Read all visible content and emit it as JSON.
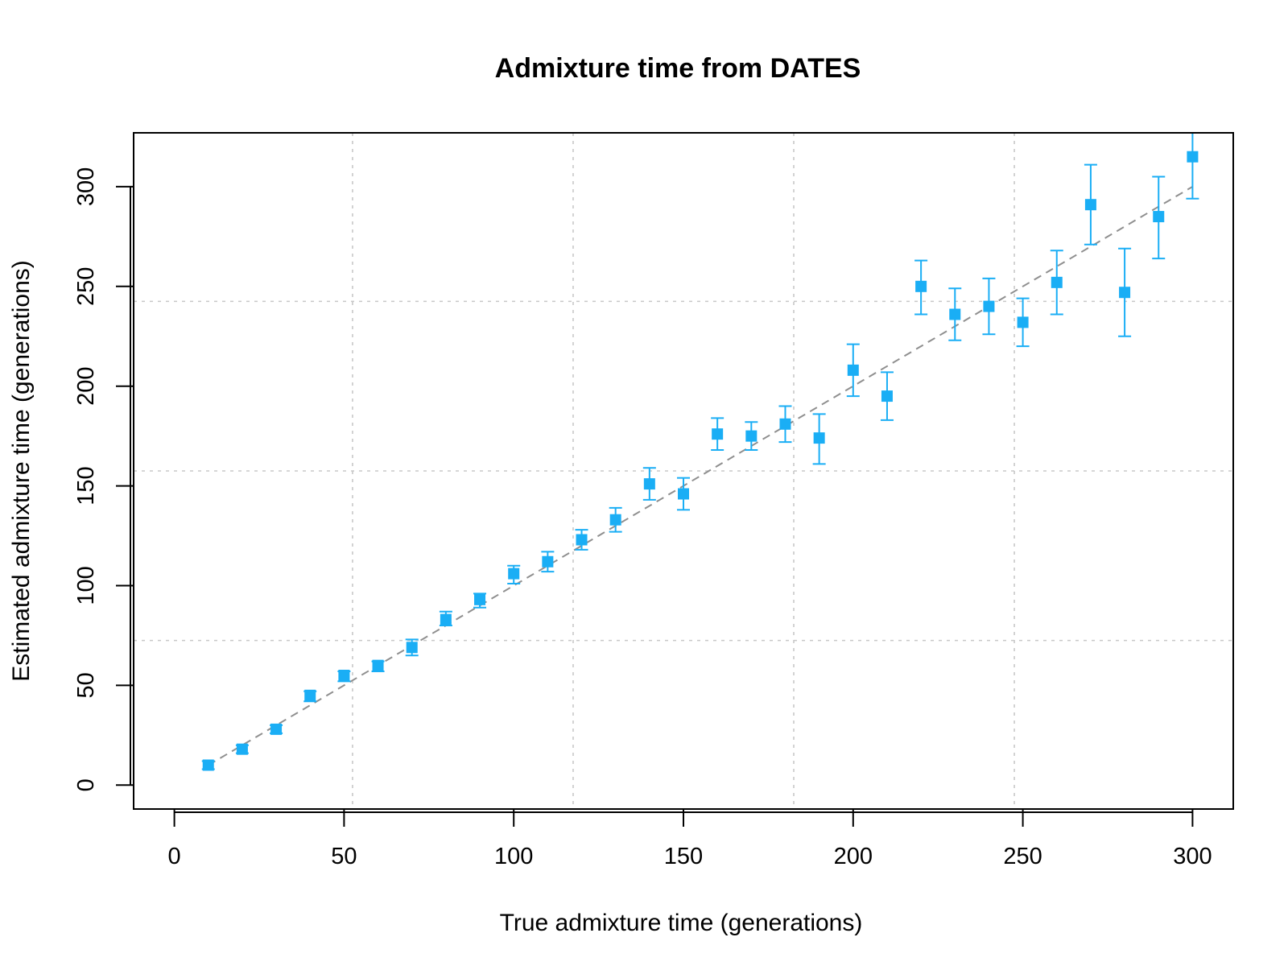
{
  "chart_data": {
    "type": "scatter",
    "title": "Admixture time from DATES",
    "xlabel": "True admixture time (generations)",
    "ylabel": "Estimated admixture time (generations)",
    "xlim": [
      -12,
      312
    ],
    "ylim": [
      -12,
      327
    ],
    "x_ticks": [
      0,
      50,
      100,
      150,
      200,
      250,
      300
    ],
    "y_ticks": [
      0,
      50,
      100,
      150,
      200,
      250,
      300
    ],
    "x_grid": [
      52.5,
      117.5,
      182.5,
      247.5
    ],
    "y_grid": [
      72.5,
      157.5,
      242.5
    ],
    "reference_line": {
      "from": [
        10,
        10
      ],
      "to": [
        300,
        300
      ]
    },
    "marker_color": "#1aaef5",
    "line_color": "#8f8f8f",
    "grid_color": "#c8c8c8",
    "points": [
      {
        "x": 10,
        "y": 10,
        "lo": 8,
        "hi": 12
      },
      {
        "x": 20,
        "y": 18,
        "lo": 16,
        "hi": 20
      },
      {
        "x": 30,
        "y": 28,
        "lo": 26,
        "hi": 30
      },
      {
        "x": 40,
        "y": 45,
        "lo": 42,
        "hi": 47
      },
      {
        "x": 50,
        "y": 55,
        "lo": 52,
        "hi": 57
      },
      {
        "x": 60,
        "y": 60,
        "lo": 57,
        "hi": 62
      },
      {
        "x": 70,
        "y": 69,
        "lo": 65,
        "hi": 73
      },
      {
        "x": 80,
        "y": 83,
        "lo": 80,
        "hi": 87
      },
      {
        "x": 90,
        "y": 93,
        "lo": 89,
        "hi": 96
      },
      {
        "x": 100,
        "y": 106,
        "lo": 101,
        "hi": 110
      },
      {
        "x": 110,
        "y": 112,
        "lo": 107,
        "hi": 117
      },
      {
        "x": 120,
        "y": 123,
        "lo": 118,
        "hi": 128
      },
      {
        "x": 130,
        "y": 133,
        "lo": 127,
        "hi": 139
      },
      {
        "x": 140,
        "y": 151,
        "lo": 143,
        "hi": 159
      },
      {
        "x": 150,
        "y": 146,
        "lo": 138,
        "hi": 154
      },
      {
        "x": 160,
        "y": 176,
        "lo": 168,
        "hi": 184
      },
      {
        "x": 170,
        "y": 175,
        "lo": 168,
        "hi": 182
      },
      {
        "x": 180,
        "y": 181,
        "lo": 172,
        "hi": 190
      },
      {
        "x": 190,
        "y": 174,
        "lo": 161,
        "hi": 186
      },
      {
        "x": 200,
        "y": 208,
        "lo": 195,
        "hi": 221
      },
      {
        "x": 210,
        "y": 195,
        "lo": 183,
        "hi": 207
      },
      {
        "x": 220,
        "y": 250,
        "lo": 236,
        "hi": 263
      },
      {
        "x": 230,
        "y": 236,
        "lo": 223,
        "hi": 249
      },
      {
        "x": 240,
        "y": 240,
        "lo": 226,
        "hi": 254
      },
      {
        "x": 250,
        "y": 232,
        "lo": 220,
        "hi": 244
      },
      {
        "x": 260,
        "y": 252,
        "lo": 236,
        "hi": 268
      },
      {
        "x": 270,
        "y": 291,
        "lo": 271,
        "hi": 311
      },
      {
        "x": 280,
        "y": 247,
        "lo": 225,
        "hi": 269
      },
      {
        "x": 290,
        "y": 285,
        "lo": 264,
        "hi": 305
      },
      {
        "x": 300,
        "y": 315,
        "lo": 294,
        "hi": 327
      }
    ]
  }
}
